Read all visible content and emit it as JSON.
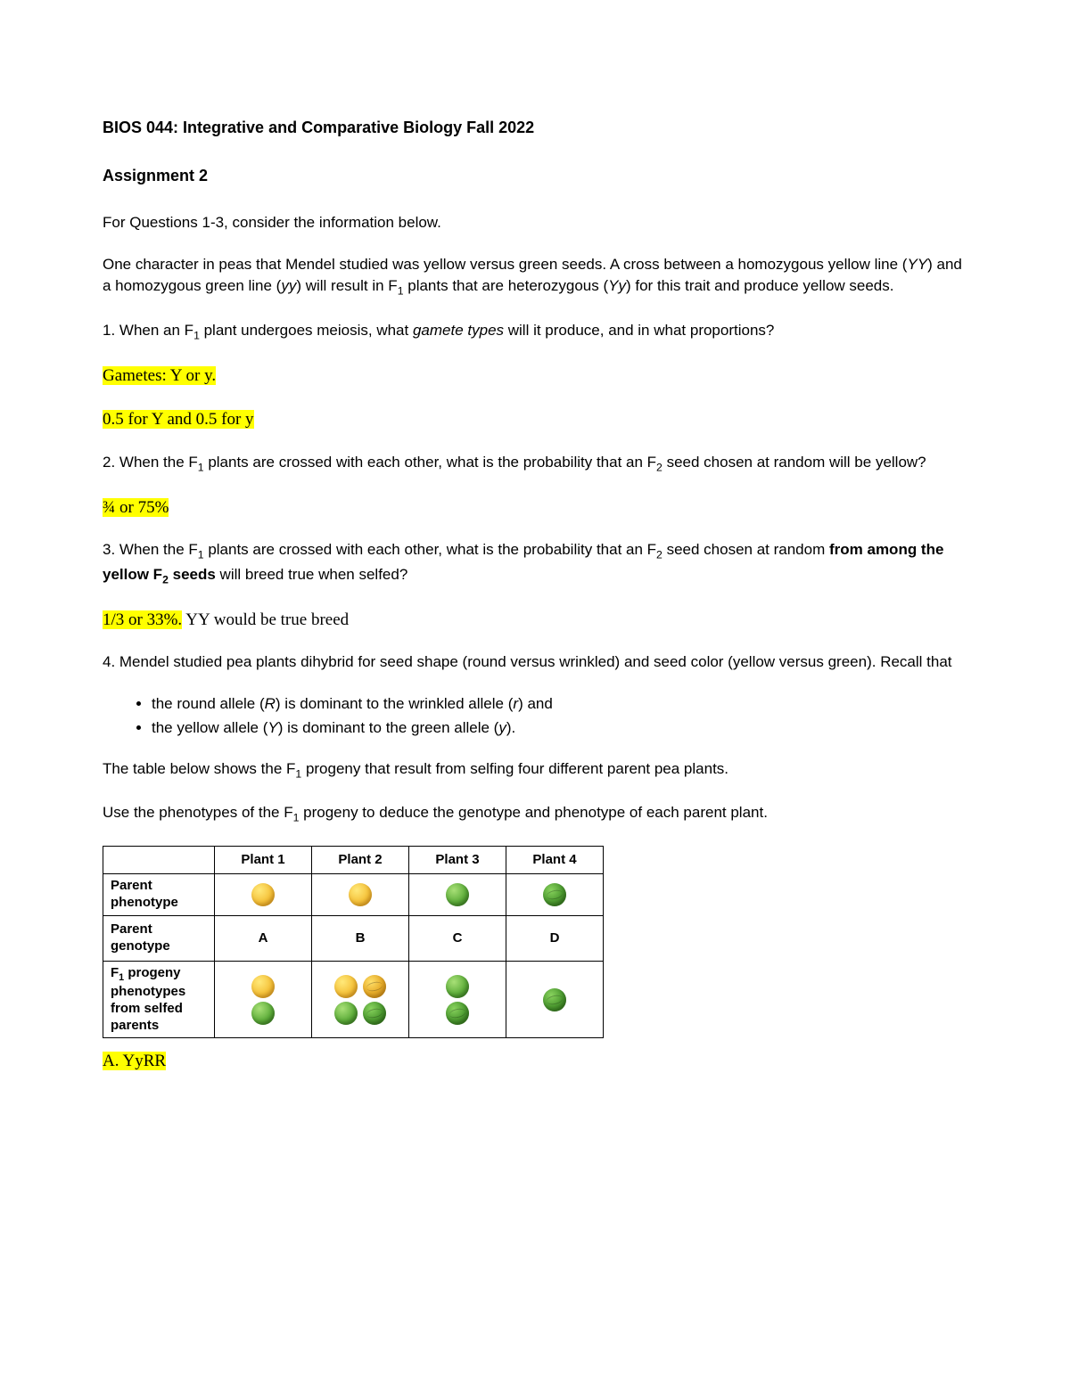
{
  "course_title": "BIOS 044: Integrative and Comparative Biology Fall 2022",
  "assignment_title": "Assignment 2",
  "intro_line": "For Questions 1-3, consider the information below.",
  "context_html": "One character in peas that Mendel studied was yellow versus green seeds. A cross between a homozygous yellow line (<em>YY</em>) and a homozygous green line (<em>yy</em>) will result in F<sub>1</sub> plants that are heterozygous (<em>Yy</em>) for this trait and produce yellow seeds.",
  "q1_html": "1. When an F<sub>1</sub> plant undergoes meiosis, what <em>gamete types</em> will it produce, and in what proportions?",
  "a1_line1": "Gametes: Y or y. ",
  "a1_line2": "0.5 for Y and 0.5 for y",
  "q2_html": "2. When the F<sub>1</sub> plants are crossed with each other, what is the probability that an F<sub>2</sub> seed chosen at random will be yellow?",
  "a2": "¾ or 75%",
  "q3_html": "3. When the F<sub>1</sub> plants are crossed with each other, what is the probability that an F<sub>2</sub> seed chosen at random <strong>from among the yellow F<sub>2</sub> seeds</strong> will breed true when selfed?",
  "a3_hl": "1/3 or 33%.",
  "a3_rest": " YY would be true breed",
  "q4_intro_html": "4. Mendel studied pea plants dihybrid for seed shape (round versus wrinkled) and seed color (yellow versus green). Recall that",
  "q4_bullet1_html": "the round allele (<em>R</em>) is dominant to the wrinkled allele (<em>r</em>) and",
  "q4_bullet2_html": "the yellow allele (<em>Y</em>) is dominant to the green allele (<em>y</em>).",
  "q4_table_intro_html": "The table below shows the F<sub>1</sub> progeny that result from selfing four different parent pea plants.",
  "q4_deduce_html": "Use the phenotypes of the F<sub>1</sub> progeny to deduce the genotype and phenotype of each parent plant.",
  "table": {
    "columns": [
      "",
      "Plant 1",
      "Plant 2",
      "Plant 3",
      "Plant 4"
    ],
    "row_headers": {
      "pheno": "Parent phenotype",
      "geno": "Parent genotype",
      "progeny_html": "F<sub>1</sub> progeny phenotypes from selfed parents"
    },
    "parent_phenotypes": [
      [
        {
          "color": "yellow",
          "wrinkled": false
        }
      ],
      [
        {
          "color": "yellow",
          "wrinkled": false
        }
      ],
      [
        {
          "color": "green",
          "wrinkled": false
        }
      ],
      [
        {
          "color": "green",
          "wrinkled": true
        }
      ]
    ],
    "parent_genotypes": [
      "A",
      "B",
      "C",
      "D"
    ],
    "progeny": [
      [
        [
          {
            "color": "yellow",
            "wrinkled": false
          }
        ],
        [
          {
            "color": "green",
            "wrinkled": false
          }
        ]
      ],
      [
        [
          {
            "color": "yellow",
            "wrinkled": false
          },
          {
            "color": "yellow",
            "wrinkled": true
          }
        ],
        [
          {
            "color": "green",
            "wrinkled": false
          },
          {
            "color": "green",
            "wrinkled": true
          }
        ]
      ],
      [
        [
          {
            "color": "green",
            "wrinkled": false
          }
        ],
        [
          {
            "color": "green",
            "wrinkled": true
          }
        ]
      ],
      [
        [
          {
            "color": "green",
            "wrinkled": true
          }
        ]
      ]
    ]
  },
  "a4_A": "A. YyRR",
  "colors": {
    "highlight": "#ffff00",
    "text": "#000000",
    "seed_yellow": "#f5c23a",
    "seed_green": "#5fae3b",
    "table_border": "#000000",
    "background": "#ffffff"
  }
}
